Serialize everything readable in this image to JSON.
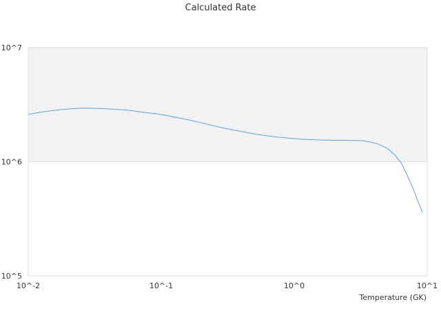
{
  "chart_data": {
    "type": "line",
    "title": "Calculated Rate",
    "xlabel": "Temperature (GK)",
    "ylabel": "",
    "x_scale": "log",
    "y_scale": "log",
    "xlim": [
      0.01,
      10
    ],
    "ylim": [
      100000,
      10000000
    ],
    "x_ticks": [
      {
        "value": 0.01,
        "label": "10^-2"
      },
      {
        "value": 0.1,
        "label": "10^-1"
      },
      {
        "value": 1,
        "label": "10^0"
      },
      {
        "value": 10,
        "label": "10^1"
      }
    ],
    "y_ticks": [
      {
        "value": 100000,
        "label": "10^5"
      },
      {
        "value": 1000000,
        "label": "10^6"
      },
      {
        "value": 10000000,
        "label": "10^7"
      }
    ],
    "shaded_band": {
      "y_from": 1000000,
      "y_to": 10000000,
      "color": "#f2f2f2"
    },
    "grid": true,
    "series": [
      {
        "color": "#5aa0e6",
        "x": [
          0.01,
          0.012,
          0.015,
          0.018,
          0.022,
          0.026,
          0.032,
          0.04,
          0.05,
          0.06,
          0.075,
          0.09,
          0.11,
          0.13,
          0.16,
          0.2,
          0.25,
          0.3,
          0.4,
          0.5,
          0.6,
          0.75,
          0.9,
          1.1,
          1.3,
          1.6,
          2.0,
          2.5,
          3.2,
          3.6,
          4.2,
          5.0,
          5.7,
          6.4,
          7.0,
          7.7,
          8.4,
          9.2
        ],
        "y": [
          2600000,
          2700000,
          2800000,
          2870000,
          2920000,
          2950000,
          2940000,
          2900000,
          2860000,
          2800000,
          2700000,
          2640000,
          2540000,
          2440000,
          2330000,
          2190000,
          2060000,
          1960000,
          1840000,
          1750000,
          1700000,
          1640000,
          1610000,
          1580000,
          1560000,
          1550000,
          1540000,
          1540000,
          1530000,
          1500000,
          1440000,
          1310000,
          1150000,
          970000,
          780000,
          610000,
          470000,
          360000
        ]
      }
    ]
  }
}
